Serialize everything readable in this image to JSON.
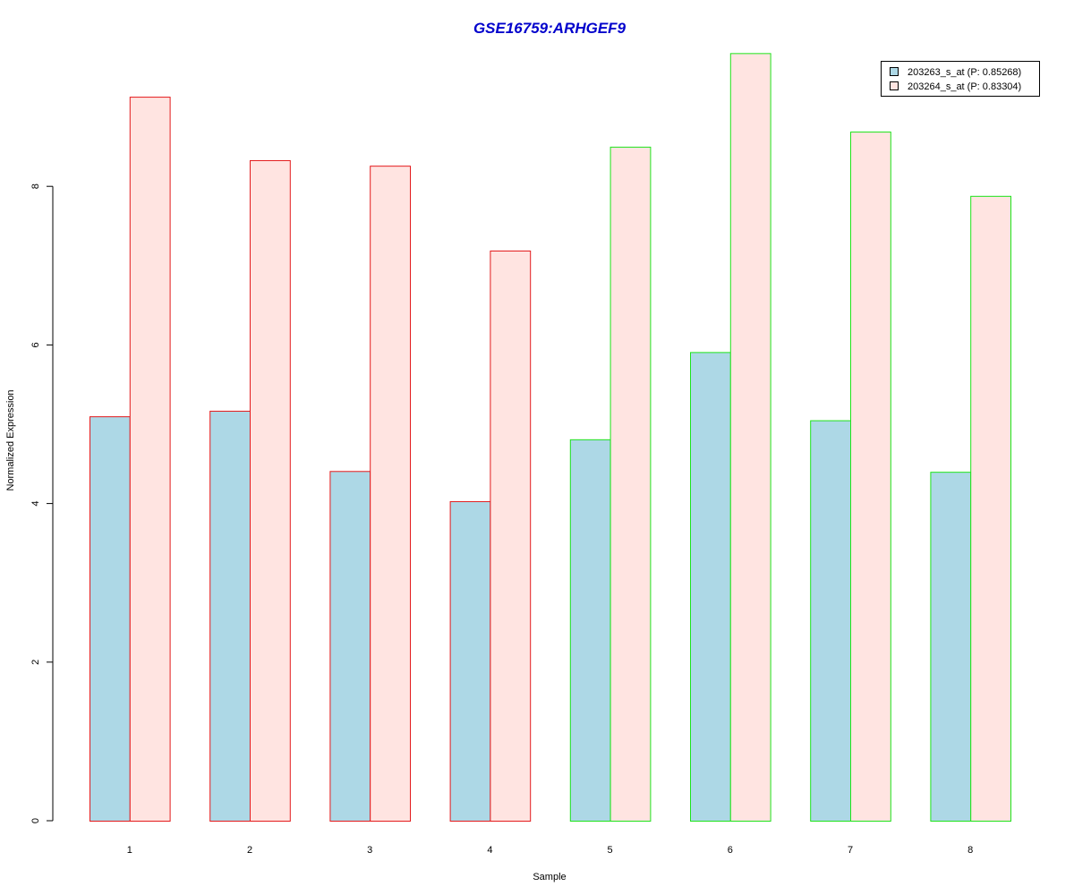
{
  "chart_data": {
    "type": "bar",
    "title": "GSE16759:ARHGEF9",
    "xlabel": "Sample",
    "ylabel": "Normalized Expression",
    "categories": [
      "1",
      "2",
      "3",
      "4",
      "5",
      "6",
      "7",
      "8"
    ],
    "series": [
      {
        "name": "203263_s_at (P: 0.85268)",
        "values": [
          5.1,
          5.17,
          4.41,
          4.03,
          4.81,
          5.91,
          5.05,
          4.4
        ],
        "fill": "#add8e6"
      },
      {
        "name": "203264_s_at (P: 0.83304)",
        "values": [
          9.13,
          8.33,
          8.26,
          7.19,
          8.5,
          9.68,
          8.69,
          7.88
        ],
        "fill": "#ffe4e1"
      }
    ],
    "group_border_colors": [
      "#e31a1c",
      "#e31a1c",
      "#e31a1c",
      "#e31a1c",
      "#1ee31a",
      "#1ee31a",
      "#1ee31a",
      "#1ee31a"
    ],
    "yticks": [
      "0",
      "2",
      "4",
      "6",
      "8"
    ],
    "ylim": [
      0,
      9.7
    ],
    "grid": false,
    "legend_position": "top-right",
    "title_color": "#0000cc"
  }
}
